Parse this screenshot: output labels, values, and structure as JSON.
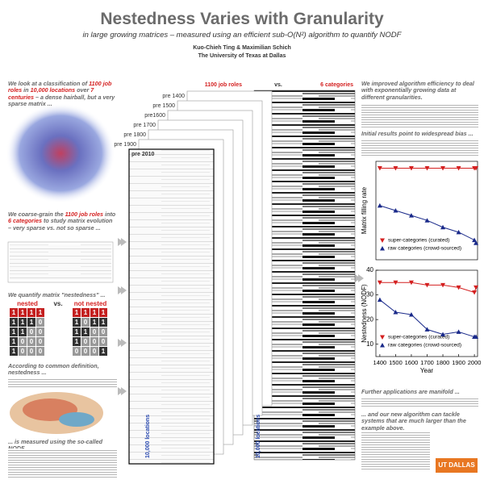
{
  "header": {
    "title": "Nestedness Varies with Granularity",
    "subtitle": "in large growing matrices – measured using an efficient sub-O(N²) algorithm to quantify NODF",
    "authors": "Kuo-Chieh Ting  &  Maximilian Schich",
    "affiliation": "The University of Texas at Dallas"
  },
  "left": {
    "intro": [
      "We look at a classification of ",
      "1100 job roles",
      " in ",
      "10,000 locations",
      " over ",
      "7 centuries",
      " – a dense hairball, but a very sparse matrix ..."
    ],
    "coarse": [
      "We coarse-grain the ",
      "1100 job roles",
      " into ",
      "6 categories",
      " to study matrix evolution – very sparse vs. not so sparse ..."
    ],
    "quantify": "We quantify matrix \"nestedness\" ...",
    "nested_label": "nested",
    "vs": "vs.",
    "not_nested_label": "not nested",
    "nested_matrix": [
      [
        1,
        1,
        1,
        1
      ],
      [
        1,
        1,
        1,
        0
      ],
      [
        1,
        1,
        0,
        0
      ],
      [
        1,
        0,
        0,
        0
      ],
      [
        1,
        0,
        0,
        0
      ]
    ],
    "not_nested_matrix": [
      [
        1,
        1,
        1,
        1
      ],
      [
        1,
        0,
        1,
        1
      ],
      [
        1,
        1,
        0,
        0
      ],
      [
        1,
        0,
        0,
        0
      ],
      [
        0,
        0,
        0,
        1
      ]
    ],
    "definition": "According to common definition, nestedness ...",
    "nodf": "... is measured using the so-called NODF."
  },
  "middle": {
    "snapshots": [
      "pre 1400",
      "pre 1500",
      "pre1600",
      "pre 1700",
      "pre 1800",
      "pre 1900",
      "pre 2010"
    ],
    "rows_label": "1100 job roles",
    "vs": "vs.",
    "cats_label": "6 categories",
    "cols_label": "10,000 locations"
  },
  "right": {
    "efficiency": "We improved algorithm efficiency to deal with exponentially growing data at different granularities.",
    "bias": "Initial results point to widespread bias ...",
    "further": "Further applications are manifold ...",
    "closing": "... and our new algorithm can tackle systems that are much larger than the example above.",
    "logo": "UT DALLAS"
  },
  "charts": [
    {
      "type": "line",
      "ylabel": "Matrix filling rate",
      "legend": "lower left",
      "x": [
        1400,
        1500,
        1600,
        1700,
        1800,
        1900,
        2000,
        2010
      ],
      "xlim": [
        1375,
        2020
      ],
      "ylim": [
        0,
        1
      ],
      "series": [
        {
          "name": "super-categories (curated)",
          "color": "#d42020",
          "marker": "down",
          "values": [
            0.93,
            0.93,
            0.93,
            0.93,
            0.93,
            0.93,
            0.93,
            0.93
          ]
        },
        {
          "name": "raw categories (crowd-sourced)",
          "color": "#1a2a8a",
          "marker": "up",
          "values": [
            0.55,
            0.5,
            0.45,
            0.4,
            0.33,
            0.28,
            0.2,
            0.17
          ]
        }
      ]
    },
    {
      "type": "line",
      "ylabel": "Nestedness (NODF)",
      "xlabel": "Year",
      "legend": "lower left",
      "x": [
        1400,
        1500,
        1600,
        1700,
        1800,
        1900,
        2000,
        2010
      ],
      "xlim": [
        1375,
        2020
      ],
      "xticks": [
        1400,
        1500,
        1600,
        1700,
        1800,
        1900,
        2000
      ],
      "ylim": [
        5,
        40
      ],
      "yticks": [
        10,
        20,
        30,
        40
      ],
      "series": [
        {
          "name": "super-categories (curated)",
          "color": "#d42020",
          "marker": "down",
          "values": [
            35,
            35,
            35,
            34,
            34,
            33,
            31,
            33
          ]
        },
        {
          "name": "raw categories (crowd-sourced)",
          "color": "#1a2a8a",
          "marker": "up",
          "values": [
            28,
            23,
            22,
            16,
            14,
            15,
            13,
            13
          ]
        }
      ]
    }
  ]
}
